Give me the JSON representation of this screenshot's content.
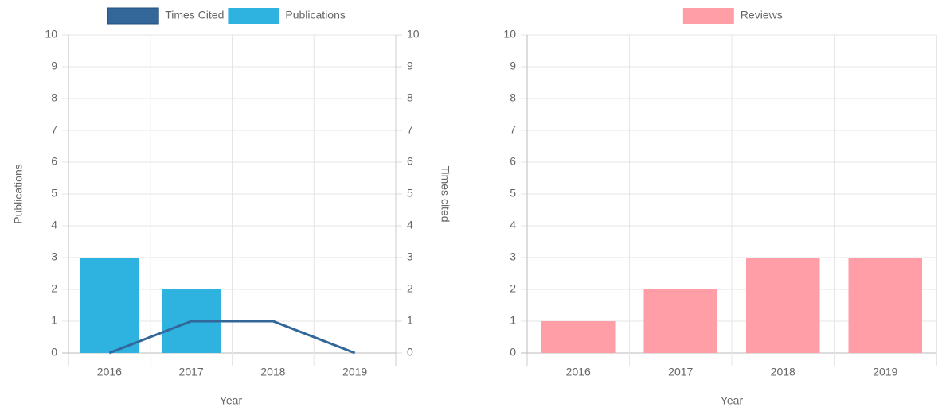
{
  "chart_data": [
    {
      "type": "bar",
      "categories": [
        "2016",
        "2017",
        "2018",
        "2019"
      ],
      "series": [
        {
          "name": "Times Cited",
          "color": "#336699",
          "type": "line",
          "axis": "y2",
          "values": [
            0,
            1,
            1,
            0
          ]
        },
        {
          "name": "Publications",
          "color": "#2eb2e0",
          "type": "bar",
          "values": [
            3,
            2,
            0,
            0
          ]
        }
      ],
      "ylabel": "Publications",
      "y2label": "Times cited",
      "xlabel": "Year",
      "ylim": [
        0,
        10
      ],
      "yticks": [
        0,
        1,
        2,
        3,
        4,
        5,
        6,
        7,
        8,
        9,
        10
      ],
      "y2lim": [
        0,
        10
      ],
      "y2ticks": [
        0,
        1,
        2,
        3,
        4,
        5,
        6,
        7,
        8,
        9,
        10
      ],
      "grid": true,
      "legend": "top"
    },
    {
      "type": "bar",
      "categories": [
        "2016",
        "2017",
        "2018",
        "2019"
      ],
      "series": [
        {
          "name": "Reviews",
          "color": "#ff9ea6",
          "type": "bar",
          "values": [
            1,
            2,
            3,
            3
          ]
        }
      ],
      "xlabel": "Year",
      "ylim": [
        0,
        10
      ],
      "yticks": [
        0,
        1,
        2,
        3,
        4,
        5,
        6,
        7,
        8,
        9,
        10
      ],
      "grid": true,
      "legend": "top"
    }
  ]
}
